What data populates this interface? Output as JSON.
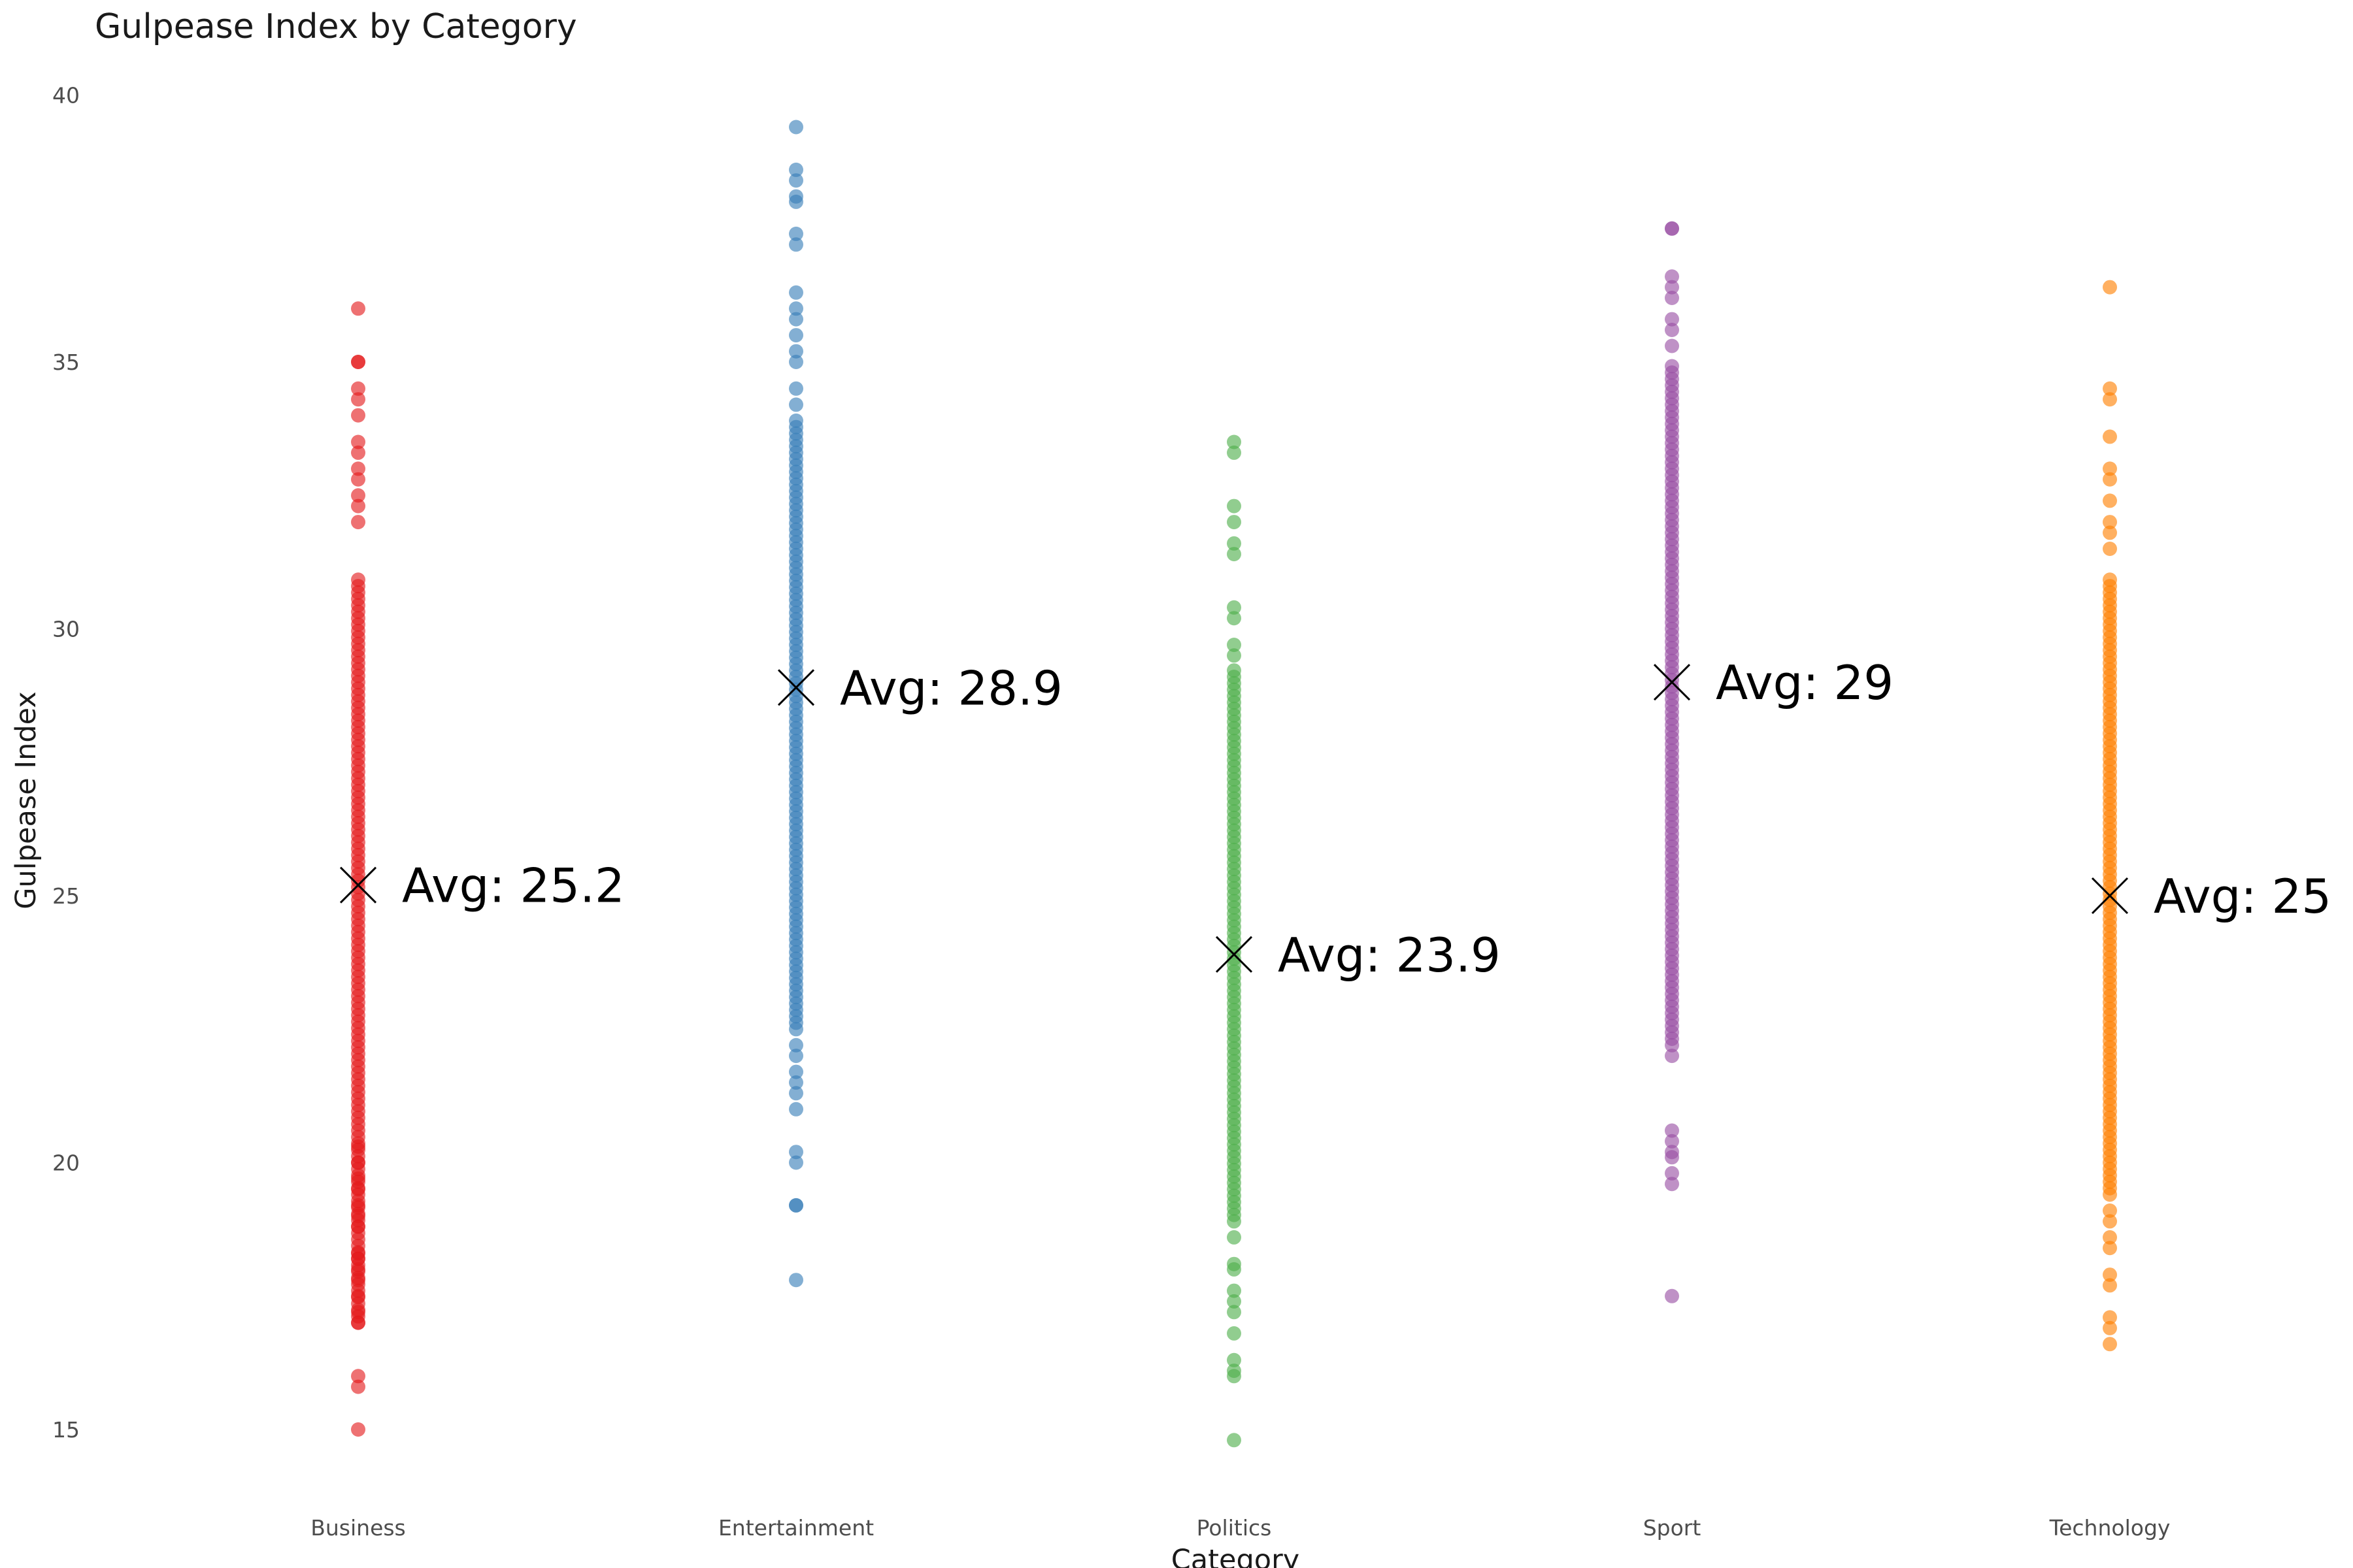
{
  "chart_data": {
    "type": "scatter",
    "title": "Gulpease Index by Category",
    "xlabel": "Category",
    "ylabel": "Gulpease Index",
    "ylim": [
      13.8,
      40.6
    ],
    "yticks": [
      15,
      20,
      25,
      30,
      35,
      40
    ],
    "grid": false,
    "legend": "none",
    "categories": [
      "Business",
      "Entertainment",
      "Politics",
      "Sport",
      "Technology"
    ],
    "series": [
      {
        "category": "Business",
        "color": "#E41A1C",
        "mean": 25.2,
        "mean_label": "Avg: 25.2",
        "range": [
          17.0,
          31.0
        ],
        "values": [
          15.0,
          15.8,
          16.0,
          17.0,
          17.2,
          17.5,
          17.8,
          18.0,
          18.2,
          18.3,
          18.8,
          19.0,
          19.2,
          19.5,
          19.7,
          20.0,
          20.3,
          32.0,
          32.3,
          32.5,
          32.8,
          33.0,
          33.3,
          33.5,
          34.0,
          34.3,
          34.5,
          35.0,
          35.0,
          36.0
        ]
      },
      {
        "category": "Entertainment",
        "color": "#377EB8",
        "mean": 28.9,
        "mean_label": "Avg: 28.9",
        "range": [
          22.5,
          34.0
        ],
        "values": [
          17.8,
          19.2,
          19.2,
          20.0,
          20.2,
          21.0,
          21.3,
          21.5,
          21.7,
          22.0,
          22.2,
          34.2,
          34.5,
          35.0,
          35.2,
          35.5,
          35.8,
          36.0,
          36.3,
          37.2,
          37.4,
          38.0,
          38.1,
          38.4,
          38.6,
          39.4
        ]
      },
      {
        "category": "Politics",
        "color": "#4DAF4A",
        "mean": 23.9,
        "mean_label": "Avg: 23.9",
        "range": [
          18.9,
          29.3
        ],
        "values": [
          14.8,
          16.0,
          16.1,
          16.3,
          16.8,
          17.2,
          17.4,
          17.6,
          18.0,
          18.1,
          18.6,
          29.5,
          29.7,
          30.2,
          30.4,
          31.4,
          31.6,
          32.0,
          32.3,
          33.3,
          33.5
        ]
      },
      {
        "category": "Sport",
        "color": "#984EA3",
        "mean": 29.0,
        "mean_label": "Avg: 29",
        "range": [
          22.2,
          35.0
        ],
        "values": [
          17.5,
          19.6,
          19.8,
          20.1,
          20.2,
          20.4,
          20.6,
          22.0,
          35.3,
          35.6,
          35.8,
          36.2,
          36.4,
          36.6,
          37.5,
          37.5
        ]
      },
      {
        "category": "Technology",
        "color": "#FF7F00",
        "mean": 25.0,
        "mean_label": "Avg: 25",
        "range": [
          19.4,
          31.0
        ],
        "values": [
          16.6,
          16.9,
          17.1,
          17.7,
          17.9,
          18.4,
          18.6,
          18.9,
          19.1,
          31.5,
          31.8,
          32.0,
          32.4,
          32.8,
          33.0,
          33.6,
          34.3,
          34.5,
          36.4
        ]
      }
    ]
  }
}
